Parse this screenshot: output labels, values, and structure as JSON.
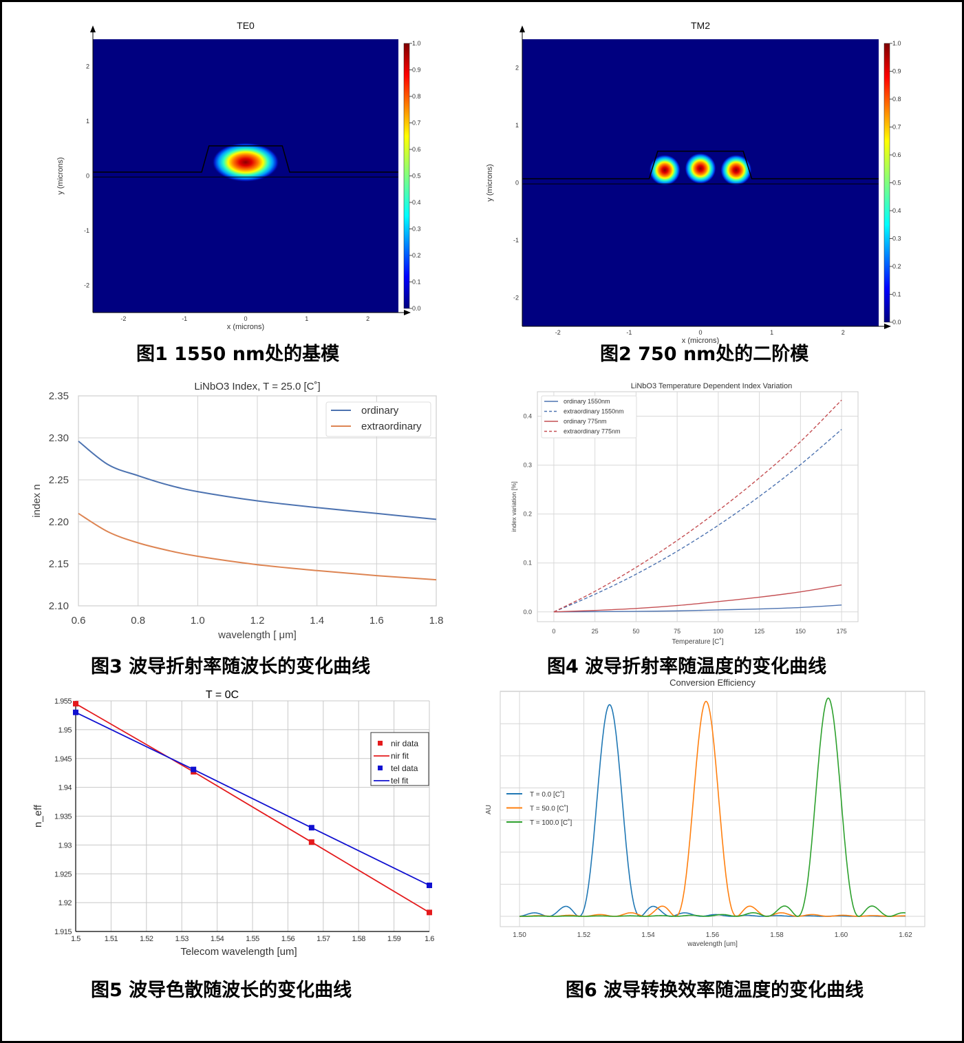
{
  "figures": {
    "fig1": {
      "caption": "图1 1550 nm处的基模",
      "title": "TE0",
      "xlabel": "x (microns)",
      "ylabel": "y (microns)",
      "xticks": [
        "-2",
        "-1",
        "0",
        "1",
        "2"
      ],
      "yticks": [
        "2",
        "1",
        "0",
        "-1",
        "-2"
      ],
      "colorbar_ticks": [
        "1.0",
        "0.9",
        "0.8",
        "0.7",
        "0.6",
        "0.5",
        "0.4",
        "0.3",
        "0.2",
        "0.1",
        "0.0"
      ]
    },
    "fig2": {
      "caption": "图2 750 nm处的二阶模",
      "title": "TM2",
      "xlabel": "x (microns)",
      "ylabel": "y (microns)",
      "xticks": [
        "-2",
        "-1",
        "0",
        "1",
        "2"
      ],
      "yticks": [
        "2",
        "1",
        "0",
        "-1",
        "-2"
      ],
      "colorbar_ticks": [
        "1.0",
        "0.9",
        "0.8",
        "0.7",
        "0.6",
        "0.5",
        "0.4",
        "0.3",
        "0.2",
        "0.1",
        "0.0"
      ]
    },
    "fig3": {
      "caption": "图3 波导折射率随波长的变化曲线"
    },
    "fig4": {
      "caption": "图4 波导折射率随温度的变化曲线"
    },
    "fig5": {
      "caption": "图5 波导色散随波长的变化曲线"
    },
    "fig6": {
      "caption": "图6 波导转换效率随温度的变化曲线"
    }
  },
  "chart_data": [
    {
      "type": "heatmap",
      "title": "TE0",
      "xlabel": "x (microns)",
      "ylabel": "y (microns)",
      "xlim": [
        -2.5,
        2.5
      ],
      "ylim": [
        -2.5,
        2.5
      ],
      "colorbar": [
        0.0,
        1.0
      ],
      "mode_centers": [
        [
          0.0,
          0.25
        ]
      ],
      "note": "fundamental mode at 1550 nm, trapezoid ridge waveguide"
    },
    {
      "type": "heatmap",
      "title": "TM2",
      "xlabel": "x (microns)",
      "ylabel": "y (microns)",
      "xlim": [
        -2.5,
        2.5
      ],
      "ylim": [
        -2.5,
        2.5
      ],
      "colorbar": [
        0.0,
        1.0
      ],
      "mode_centers": [
        [
          -0.5,
          0.22
        ],
        [
          0.0,
          0.25
        ],
        [
          0.5,
          0.22
        ]
      ],
      "note": "second-order mode at 750 nm"
    },
    {
      "type": "line",
      "title": "LiNbO3 Index, T = 25.0 [C˚]",
      "xlabel": "wavelength [ μm]",
      "ylabel": "index n",
      "xlim": [
        0.6,
        1.8
      ],
      "ylim": [
        2.1,
        2.35
      ],
      "xticks": [
        "0.6",
        "0.8",
        "1.0",
        "1.2",
        "1.4",
        "1.6",
        "1.8"
      ],
      "yticks": [
        "2.35",
        "2.30",
        "2.25",
        "2.20",
        "2.15",
        "2.10"
      ],
      "legend_position": "upper right",
      "grid": true,
      "x": [
        0.6,
        0.7,
        0.8,
        0.9,
        1.0,
        1.2,
        1.4,
        1.6,
        1.8
      ],
      "series": [
        {
          "name": "ordinary",
          "color": "#4c72b0",
          "values": [
            2.296,
            2.268,
            2.255,
            2.244,
            2.236,
            2.225,
            2.217,
            2.21,
            2.203
          ]
        },
        {
          "name": "extraordinary",
          "color": "#dd8452",
          "values": [
            2.21,
            2.188,
            2.175,
            2.166,
            2.159,
            2.149,
            2.142,
            2.136,
            2.131
          ]
        }
      ]
    },
    {
      "type": "line",
      "title": "LiNbO3 Temperature Dependent Index Variation",
      "xlabel": "Temperature [C˚]",
      "ylabel": "index variation [%]",
      "xlim": [
        -10,
        185
      ],
      "ylim": [
        -0.02,
        0.45
      ],
      "xticks": [
        "0",
        "25",
        "50",
        "75",
        "100",
        "125",
        "150",
        "175"
      ],
      "yticks": [
        "0.0",
        "0.1",
        "0.2",
        "0.3",
        "0.4"
      ],
      "legend_position": "upper left",
      "grid": true,
      "x": [
        0,
        25,
        50,
        75,
        100,
        125,
        150,
        175
      ],
      "series": [
        {
          "name": "ordinary 1550nm",
          "color": "#4c72b0",
          "dash": "solid",
          "values": [
            0.0,
            0.0005,
            0.001,
            0.002,
            0.004,
            0.006,
            0.009,
            0.014
          ]
        },
        {
          "name": "extraordinary 1550nm",
          "color": "#4c72b0",
          "dash": "dashed",
          "values": [
            0.0,
            0.036,
            0.077,
            0.124,
            0.177,
            0.236,
            0.301,
            0.373
          ]
        },
        {
          "name": "ordinary 775nm",
          "color": "#c44e52",
          "dash": "solid",
          "values": [
            0.0,
            0.003,
            0.007,
            0.013,
            0.021,
            0.03,
            0.041,
            0.055
          ]
        },
        {
          "name": "extraordinary 775nm",
          "color": "#c44e52",
          "dash": "dashed",
          "values": [
            0.0,
            0.042,
            0.091,
            0.146,
            0.207,
            0.274,
            0.348,
            0.433
          ]
        }
      ]
    },
    {
      "type": "line",
      "title": "T = 0C",
      "xlabel": "Telecom wavelength [um]",
      "ylabel": "n_eff",
      "xlim": [
        1.5,
        1.6
      ],
      "ylim": [
        1.915,
        1.955
      ],
      "xticks": [
        "1.5",
        "1.51",
        "1.52",
        "1.53",
        "1.54",
        "1.55",
        "1.56",
        "1.57",
        "1.58",
        "1.59",
        "1.6"
      ],
      "yticks": [
        "1.955",
        "1.95",
        "1.945",
        "1.94",
        "1.935",
        "1.93",
        "1.925",
        "1.92",
        "1.915"
      ],
      "legend_position": "center right",
      "grid": true,
      "series": [
        {
          "name": "nir data",
          "type": "scatter",
          "color": "#e41a1c",
          "x": [
            1.5,
            1.5333,
            1.5667,
            1.6
          ],
          "values": [
            1.9545,
            1.9427,
            1.9305,
            1.9183
          ]
        },
        {
          "name": "nir fit",
          "color": "#e41a1c",
          "x": [
            1.5,
            1.5333,
            1.5667,
            1.6
          ],
          "values": [
            1.9545,
            1.9427,
            1.9305,
            1.9183
          ]
        },
        {
          "name": "tel data",
          "type": "scatter",
          "color": "#1010d0",
          "x": [
            1.5,
            1.5333,
            1.5667,
            1.6
          ],
          "values": [
            1.953,
            1.9431,
            1.933,
            1.923
          ]
        },
        {
          "name": "tel fit",
          "color": "#1010d0",
          "x": [
            1.5,
            1.5333,
            1.5667,
            1.6
          ],
          "values": [
            1.953,
            1.9431,
            1.933,
            1.923
          ]
        }
      ]
    },
    {
      "type": "line",
      "title": "Conversion Efficiency",
      "xlabel": "wavelength [um]",
      "ylabel": "AU",
      "xlim": [
        1.494,
        1.626
      ],
      "xticks": [
        "1.50",
        "1.52",
        "1.54",
        "1.56",
        "1.58",
        "1.60",
        "1.62"
      ],
      "legend_position": "center left",
      "grid": true,
      "series": [
        {
          "name": "T = 0.0  [C˚]",
          "color": "#1f77b4",
          "peak_x": 1.528,
          "peak": 0.97
        },
        {
          "name": "T = 50.0  [C˚]",
          "color": "#ff7f0e",
          "peak_x": 1.558,
          "peak": 0.985
        },
        {
          "name": "T = 100.0  [C˚]",
          "color": "#2ca02c",
          "peak_x": 1.596,
          "peak": 1.0
        }
      ]
    }
  ]
}
